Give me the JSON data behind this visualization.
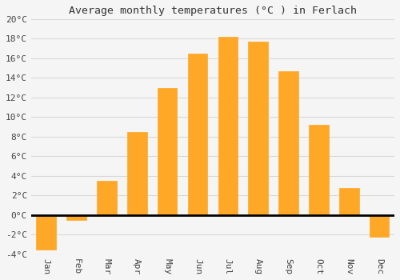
{
  "title": "Average monthly temperatures (°C ) in Ferlach",
  "months": [
    "Jan",
    "Feb",
    "Mar",
    "Apr",
    "May",
    "Jun",
    "Jul",
    "Aug",
    "Sep",
    "Oct",
    "Nov",
    "Dec"
  ],
  "values": [
    -3.5,
    -0.5,
    3.5,
    8.5,
    13.0,
    16.5,
    18.2,
    17.7,
    14.7,
    9.2,
    2.8,
    -2.2
  ],
  "bar_color": "#FFA726",
  "bar_edge_color": "#E65100",
  "ylim": [
    -4,
    20
  ],
  "yticks": [
    -4,
    -2,
    0,
    2,
    4,
    6,
    8,
    10,
    12,
    14,
    16,
    18,
    20
  ],
  "ytick_labels": [
    "-4°C",
    "-2°C",
    "0°C",
    "2°C",
    "4°C",
    "6°C",
    "8°C",
    "10°C",
    "12°C",
    "14°C",
    "16°C",
    "18°C",
    "20°C"
  ],
  "background_color": "#f5f5f5",
  "grid_color": "#d8d8d8",
  "title_fontsize": 9.5,
  "tick_fontsize": 8,
  "zero_line_color": "#000000",
  "bar_width": 0.65
}
